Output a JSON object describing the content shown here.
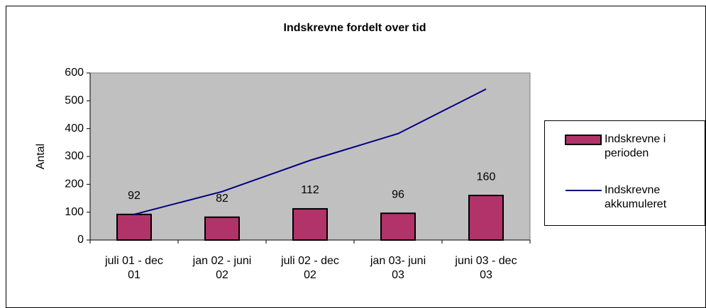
{
  "chart_data": {
    "type": "bar",
    "title": "Indskrevne fordelt over tid",
    "y_label": "Antal",
    "categories": [
      "juli 01 - dec 01",
      "jan 02 - juni 02",
      "juli 02 - dec 02",
      "jan 03- juni 03",
      "juni 03 - dec 03"
    ],
    "series": [
      {
        "name": "Indskrevne i perioden",
        "type": "bar",
        "color": "#b2336a",
        "values": [
          92,
          82,
          112,
          96,
          160
        ]
      },
      {
        "name": "Indskrevne akkumuleret",
        "type": "line",
        "color": "#000080",
        "values": [
          92,
          174,
          286,
          382,
          542
        ]
      }
    ],
    "ylim": [
      0,
      600
    ],
    "yticks": [
      0,
      100,
      200,
      300,
      400,
      500,
      600
    ],
    "plot_background": "#c0c0c0",
    "legend": "right"
  }
}
